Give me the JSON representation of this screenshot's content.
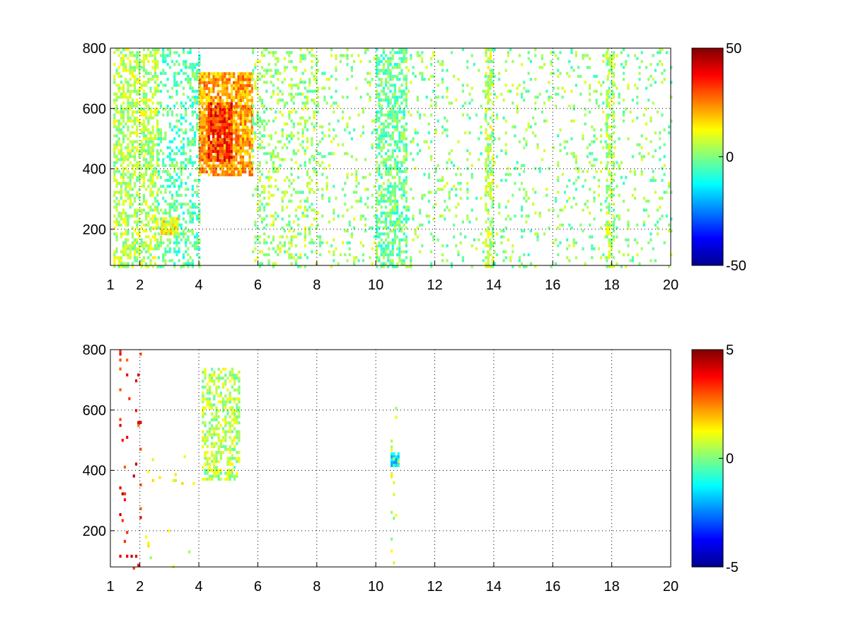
{
  "colors": {
    "background": "#ffffff",
    "grid": "#000000",
    "colormap": "jet"
  },
  "chart_data": [
    {
      "type": "heatmap",
      "title": "",
      "xlabel": "",
      "ylabel": "",
      "xlim": [
        1,
        20
      ],
      "ylim": [
        80,
        800
      ],
      "x_ticks": [
        "1",
        "2",
        "4",
        "6",
        "8",
        "10",
        "12",
        "14",
        "16",
        "18",
        "20"
      ],
      "y_ticks": [
        "200",
        "400",
        "600",
        "800"
      ],
      "grid": true,
      "colorbar": {
        "min": -50,
        "max": 50,
        "ticks": [
          "50",
          "0",
          "-50"
        ],
        "colormap": "jet"
      },
      "features": [
        {
          "x": [
            1.1,
            2.6
          ],
          "y": [
            80,
            800
          ],
          "value": 5,
          "density": 0.55
        },
        {
          "x": [
            2.6,
            4.0
          ],
          "y": [
            80,
            800
          ],
          "value": -4,
          "density": 0.35
        },
        {
          "x": [
            2.7,
            3.3
          ],
          "y": [
            190,
            240
          ],
          "value": 12,
          "density": 0.9
        },
        {
          "x": [
            4.0,
            5.8
          ],
          "y": [
            380,
            720
          ],
          "value": 22,
          "density": 0.85
        },
        {
          "x": [
            4.3,
            5.1
          ],
          "y": [
            430,
            620
          ],
          "value": 34,
          "density": 0.8
        },
        {
          "x": [
            5.8,
            8.0
          ],
          "y": [
            80,
            800
          ],
          "value": 3,
          "density": 0.25
        },
        {
          "x": [
            8.0,
            10.0
          ],
          "y": [
            80,
            800
          ],
          "value": 2,
          "density": 0.12
        },
        {
          "x": [
            10.0,
            11.0
          ],
          "y": [
            80,
            800
          ],
          "value": -2,
          "density": 0.55
        },
        {
          "x": [
            11.0,
            20.0
          ],
          "y": [
            80,
            800
          ],
          "value": 1,
          "density": 0.1
        },
        {
          "x": [
            13.7,
            14.0
          ],
          "y": [
            80,
            800
          ],
          "value": 6,
          "density": 0.5
        },
        {
          "x": [
            17.8,
            18.1
          ],
          "y": [
            80,
            800
          ],
          "value": 4,
          "density": 0.55
        }
      ]
    },
    {
      "type": "heatmap",
      "title": "",
      "xlabel": "",
      "ylabel": "",
      "xlim": [
        1,
        20
      ],
      "ylim": [
        80,
        800
      ],
      "x_ticks": [
        "1",
        "2",
        "4",
        "6",
        "8",
        "10",
        "12",
        "14",
        "16",
        "18",
        "20"
      ],
      "y_ticks": [
        "200",
        "400",
        "600",
        "800"
      ],
      "grid": true,
      "colorbar": {
        "min": -5,
        "max": 5,
        "ticks": [
          "5",
          "0",
          "-5"
        ],
        "colormap": "jet"
      },
      "features": [
        {
          "x": [
            4.1,
            5.4
          ],
          "y": [
            370,
            740
          ],
          "value": 0.5,
          "density": 0.5
        },
        {
          "x": [
            10.5,
            10.8
          ],
          "y": [
            420,
            460
          ],
          "value": -1.5,
          "density": 0.9
        },
        {
          "x": [
            10.5,
            10.8
          ],
          "y": [
            80,
            640
          ],
          "value": 0.6,
          "density": 0.08
        },
        {
          "x": [
            1.3,
            2.1
          ],
          "y": [
            80,
            800
          ],
          "value": 3.5,
          "density": 0.05
        },
        {
          "x": [
            2.1,
            4.0
          ],
          "y": [
            80,
            450
          ],
          "value": 1.0,
          "density": 0.02
        }
      ]
    }
  ]
}
